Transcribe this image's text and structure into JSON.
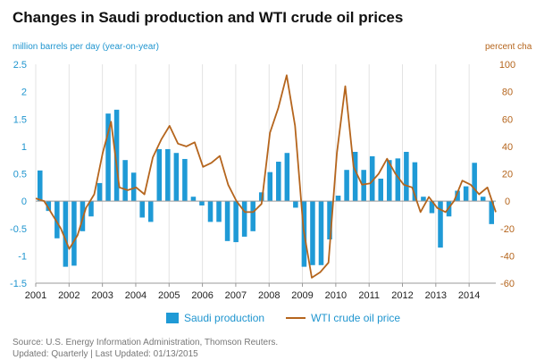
{
  "chart_data": {
    "type": "bar+line",
    "title": "Changes in Saudi production and WTI crude oil prices",
    "ylabel_left": "million barrels per day (year-on-year)",
    "ylabel_right": "percent cha",
    "ylim_left": [
      -1.5,
      2.5
    ],
    "ylim_right": [
      -60,
      100
    ],
    "yticks_left": [
      "2.5",
      "2",
      "1.5",
      "1",
      "0.5",
      "0",
      "-0.5",
      "-1",
      "-1.5"
    ],
    "yticks_right": [
      "100",
      "80",
      "60",
      "40",
      "20",
      "0",
      "-20",
      "-40",
      "-60"
    ],
    "xticks": [
      "2001",
      "2002",
      "2003",
      "2004",
      "2005",
      "2006",
      "2007",
      "2008",
      "2009",
      "2010",
      "2011",
      "2012",
      "2013",
      "2014"
    ],
    "x_start": 2001,
    "x_end": 2014.8,
    "grid": "vertical",
    "legend_position": "bottom",
    "colors": {
      "bar": "#1f9ad6",
      "line": "#b5651d",
      "left_axis": "#1f95cf",
      "right_axis": "#b5651d"
    },
    "series": [
      {
        "name": "Saudi production",
        "type": "bar",
        "values": [
          0.56,
          -0.18,
          -0.68,
          -1.2,
          -1.18,
          -0.55,
          -0.28,
          0.33,
          1.6,
          1.67,
          0.75,
          0.52,
          -0.3,
          -0.38,
          0.95,
          0.95,
          0.88,
          0.77,
          0.08,
          -0.08,
          -0.38,
          -0.38,
          -0.73,
          -0.75,
          -0.65,
          -0.55,
          0.16,
          0.53,
          0.72,
          0.88,
          -0.12,
          -1.2,
          -1.17,
          -1.17,
          -0.7,
          0.1,
          0.57,
          0.9,
          0.57,
          0.82,
          0.41,
          0.75,
          0.78,
          0.9,
          0.71,
          0.08,
          -0.22,
          -0.85,
          -0.28,
          0.19,
          0.27,
          0.7,
          0.08,
          -0.42
        ]
      },
      {
        "name": "WTI crude oil price",
        "type": "line",
        "values": [
          2,
          0,
          -10,
          -20,
          -35,
          -25,
          -5,
          5,
          35,
          58,
          10,
          8,
          10,
          5,
          32,
          45,
          55,
          42,
          40,
          43,
          25,
          28,
          33,
          12,
          0,
          -8,
          -8,
          -2,
          50,
          68,
          92,
          55,
          -20,
          -56,
          -52,
          -45,
          35,
          84,
          25,
          12,
          13,
          20,
          31,
          20,
          12,
          10,
          -8,
          3,
          -5,
          -8,
          0,
          15,
          12,
          5,
          10,
          -8
        ]
      }
    ]
  },
  "legend": {
    "bar_label": "Saudi production",
    "line_label": "WTI crude oil price"
  },
  "source": {
    "line1": "Source: U.S. Energy Information Administration, Thomson Reuters.",
    "line2": "Updated: Quarterly | Last Updated: 01/13/2015"
  }
}
